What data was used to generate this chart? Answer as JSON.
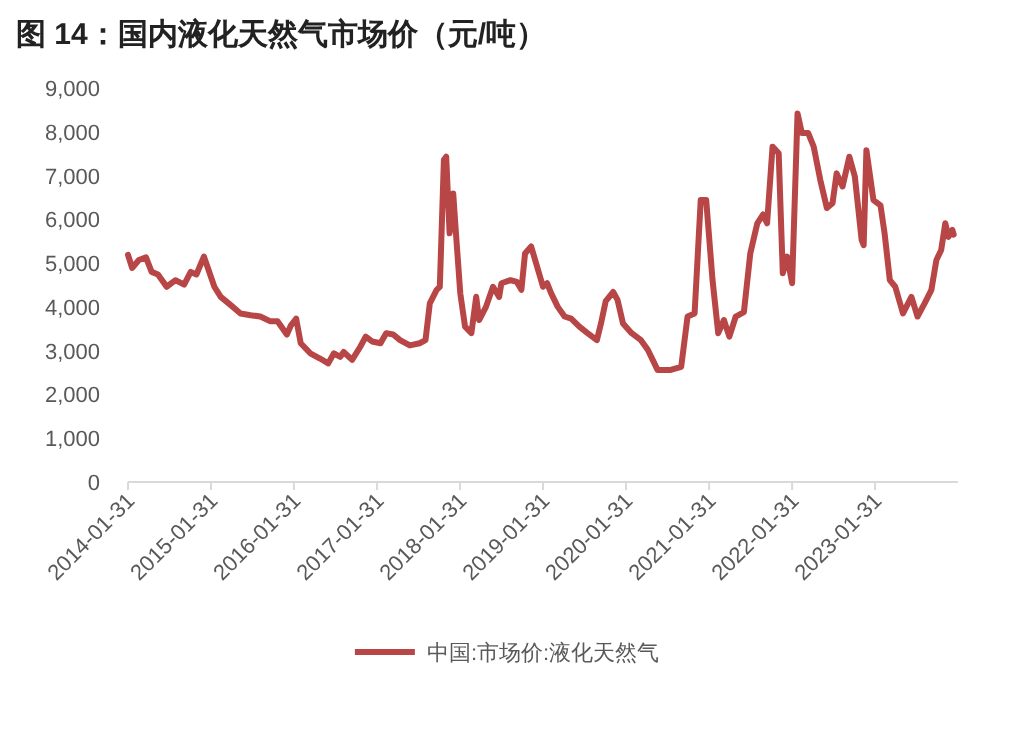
{
  "chart_data": {
    "type": "line",
    "title": "图 14：国内液化天然气市场价（元/吨）",
    "xlim": [
      "2014-01-31",
      "2024-01-31"
    ],
    "xticks": [
      "2014-01-31",
      "2015-01-31",
      "2016-01-31",
      "2017-01-31",
      "2018-01-31",
      "2019-01-31",
      "2020-01-31",
      "2021-01-31",
      "2022-01-31",
      "2023-01-31"
    ],
    "ylim": [
      0,
      9000
    ],
    "yticks": [
      {
        "value": 0,
        "label": "0"
      },
      {
        "value": 1000,
        "label": "1,000"
      },
      {
        "value": 2000,
        "label": "2,000"
      },
      {
        "value": 3000,
        "label": "3,000"
      },
      {
        "value": 4000,
        "label": "4,000"
      },
      {
        "value": 5000,
        "label": "5,000"
      },
      {
        "value": 6000,
        "label": "6,000"
      },
      {
        "value": 7000,
        "label": "7,000"
      },
      {
        "value": 8000,
        "label": "8,000"
      },
      {
        "value": 9000,
        "label": "9,000"
      }
    ],
    "grid": false,
    "legend": "bottom",
    "marker": "none",
    "line_style": "solid",
    "series": [
      {
        "name": "中国:市场价:液化天然气",
        "color": "#b84646",
        "x": [
          "2014-01-31",
          "2014-02-18",
          "2014-03-20",
          "2014-04-20",
          "2014-05-15",
          "2014-06-12",
          "2014-07-20",
          "2014-08-28",
          "2014-10-05",
          "2014-11-03",
          "2014-11-28",
          "2014-12-31",
          "2015-02-15",
          "2015-03-15",
          "2015-04-28",
          "2015-06-10",
          "2015-07-25",
          "2015-09-05",
          "2015-10-20",
          "2015-11-20",
          "2015-12-31",
          "2016-01-18",
          "2016-02-10",
          "2016-03-01",
          "2016-04-12",
          "2016-05-25",
          "2016-06-30",
          "2016-07-25",
          "2016-08-22",
          "2016-09-06",
          "2016-10-13",
          "2016-11-18",
          "2016-12-12",
          "2017-01-09",
          "2017-02-15",
          "2017-03-12",
          "2017-04-12",
          "2017-05-12",
          "2017-06-24",
          "2017-08-06",
          "2017-09-01",
          "2017-09-20",
          "2017-10-20",
          "2017-11-03",
          "2017-11-21",
          "2017-12-01",
          "2017-12-16",
          "2018-01-01",
          "2018-01-13",
          "2018-02-01",
          "2018-02-22",
          "2018-03-22",
          "2018-04-12",
          "2018-04-25",
          "2018-05-25",
          "2018-06-25",
          "2018-07-22",
          "2018-08-01",
          "2018-09-10",
          "2018-10-08",
          "2018-10-28",
          "2018-11-13",
          "2018-12-10",
          "2019-01-31",
          "2019-02-18",
          "2019-03-08",
          "2019-04-06",
          "2019-05-06",
          "2019-06-04",
          "2019-07-10",
          "2019-08-15",
          "2019-09-25",
          "2019-10-13",
          "2019-11-03",
          "2019-12-06",
          "2019-12-25",
          "2020-01-18",
          "2020-02-25",
          "2020-04-06",
          "2020-05-06",
          "2020-06-18",
          "2020-08-15",
          "2020-09-30",
          "2020-10-28",
          "2020-11-28",
          "2020-12-25",
          "2021-01-18",
          "2021-02-15",
          "2021-03-12",
          "2021-04-06",
          "2021-04-30",
          "2021-05-28",
          "2021-07-03",
          "2021-07-31",
          "2021-08-31",
          "2021-09-25",
          "2021-10-13",
          "2021-11-06",
          "2021-12-03",
          "2021-12-21",
          "2022-01-09",
          "2022-01-31",
          "2022-02-24",
          "2022-03-15",
          "2022-04-12",
          "2022-05-06",
          "2022-06-04",
          "2022-07-03",
          "2022-07-28",
          "2022-08-15",
          "2022-09-10",
          "2022-10-10",
          "2022-11-03",
          "2022-12-03",
          "2022-12-12",
          "2022-12-24",
          "2023-01-24",
          "2023-02-24",
          "2023-03-14",
          "2023-04-06",
          "2023-04-30",
          "2023-06-03",
          "2023-07-10",
          "2023-08-06",
          "2023-09-06",
          "2023-10-06",
          "2023-10-28",
          "2023-11-18",
          "2023-12-06",
          "2023-12-20",
          "2024-01-06",
          "2024-01-12"
        ],
        "values": [
          5190,
          4890,
          5070,
          5130,
          4800,
          4740,
          4460,
          4610,
          4510,
          4800,
          4740,
          5150,
          4460,
          4230,
          4040,
          3850,
          3810,
          3780,
          3670,
          3670,
          3370,
          3580,
          3730,
          3170,
          2940,
          2820,
          2710,
          2940,
          2860,
          2970,
          2790,
          3090,
          3320,
          3210,
          3170,
          3400,
          3370,
          3240,
          3120,
          3170,
          3240,
          4080,
          4390,
          4460,
          7360,
          7430,
          5680,
          6590,
          5680,
          4310,
          3550,
          3400,
          4230,
          3700,
          4000,
          4460,
          4230,
          4540,
          4610,
          4570,
          4390,
          5220,
          5380,
          4460,
          4540,
          4310,
          4000,
          3780,
          3730,
          3550,
          3400,
          3240,
          3620,
          4130,
          4340,
          4160,
          3620,
          3400,
          3240,
          3020,
          2560,
          2560,
          2630,
          3780,
          3850,
          6440,
          6440,
          4610,
          3400,
          3700,
          3320,
          3780,
          3880,
          5220,
          5910,
          6110,
          5910,
          7660,
          7510,
          4770,
          5150,
          4540,
          8420,
          7970,
          7970,
          7660,
          6900,
          6260,
          6370,
          7050,
          6750,
          7430,
          6980,
          5530,
          5410,
          7580,
          6440,
          6320,
          5680,
          4610,
          4460,
          3850,
          4230,
          3780,
          4080,
          4390,
          5070,
          5300,
          5910,
          5600,
          5760,
          5650
        ]
      }
    ]
  }
}
